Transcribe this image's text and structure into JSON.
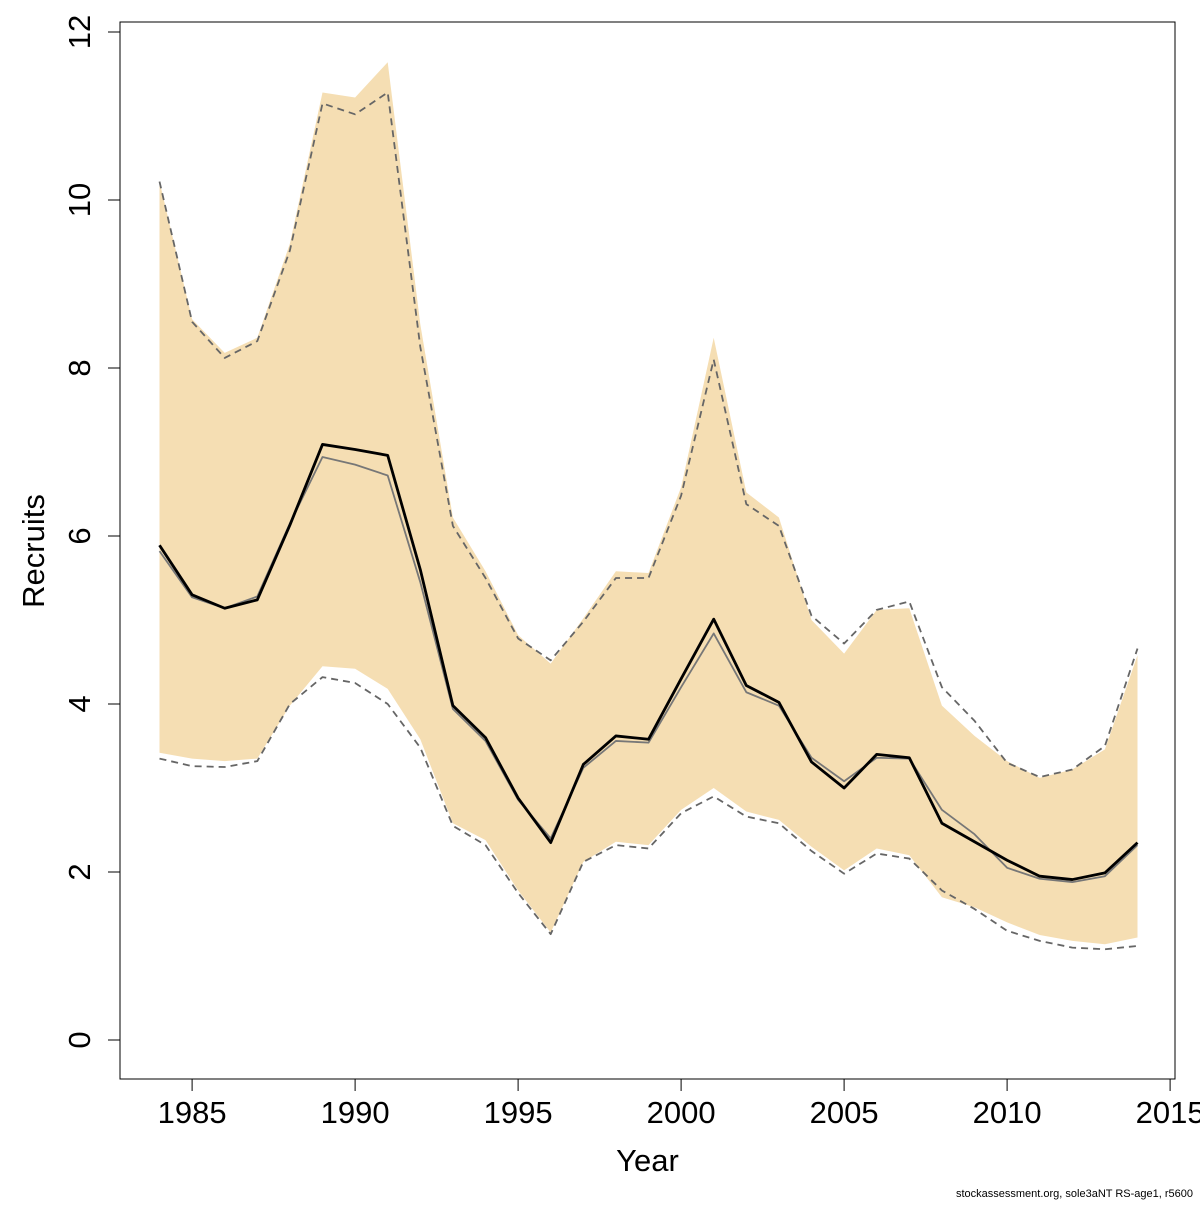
{
  "chart_data": {
    "type": "line",
    "xlabel": "Year",
    "ylabel": "Recruits",
    "xlim": [
      1982.8,
      2015
    ],
    "ylim": [
      -0.47,
      12.1
    ],
    "x_ticks": [
      1985,
      1990,
      1995,
      2000,
      2005,
      2010,
      2015
    ],
    "x_tick_labels": [
      "1985",
      "1990",
      "1995",
      "2000",
      "2005",
      "2010",
      "2015"
    ],
    "y_ticks": [
      0,
      2,
      4,
      6,
      8,
      10,
      12
    ],
    "y_tick_labels": [
      "0",
      "2",
      "4",
      "6",
      "8",
      "10",
      "12"
    ],
    "years": [
      1984,
      1985,
      1986,
      1987,
      1988,
      1989,
      1990,
      1991,
      1992,
      1993,
      1994,
      1995,
      1996,
      1997,
      1998,
      1999,
      2000,
      2001,
      2002,
      2003,
      2004,
      2005,
      2006,
      2007,
      2008,
      2009,
      2010,
      2011,
      2012,
      2013,
      2014
    ],
    "series": [
      {
        "role": "band",
        "color": "#f5deb3",
        "lower": [
          3.42,
          3.35,
          3.32,
          3.35,
          3.98,
          4.45,
          4.42,
          4.18,
          3.58,
          2.58,
          2.38,
          1.78,
          1.28,
          2.12,
          2.36,
          2.32,
          2.74,
          3.0,
          2.72,
          2.62,
          2.3,
          2.02,
          2.28,
          2.2,
          1.7,
          1.58,
          1.4,
          1.25,
          1.18,
          1.14,
          1.22
        ],
        "upper": [
          10.22,
          8.58,
          8.18,
          8.36,
          9.48,
          11.28,
          11.22,
          11.64,
          8.52,
          6.22,
          5.58,
          4.82,
          4.48,
          5.02,
          5.58,
          5.56,
          6.58,
          8.36,
          6.52,
          6.22,
          5.0,
          4.6,
          5.12,
          5.14,
          3.98,
          3.62,
          3.32,
          3.12,
          3.22,
          3.46,
          4.58
        ]
      },
      {
        "role": "upper-dashed",
        "color": "#666666",
        "values": [
          10.22,
          8.55,
          8.12,
          8.32,
          9.4,
          11.15,
          11.02,
          11.28,
          8.25,
          6.12,
          5.5,
          4.78,
          4.52,
          4.98,
          5.5,
          5.5,
          6.48,
          8.1,
          6.38,
          6.12,
          5.05,
          4.72,
          5.12,
          5.22,
          4.2,
          3.8,
          3.3,
          3.13,
          3.22,
          3.5,
          4.66
        ]
      },
      {
        "role": "lower-dashed",
        "color": "#666666",
        "values": [
          3.35,
          3.26,
          3.25,
          3.32,
          4.0,
          4.32,
          4.25,
          4.0,
          3.48,
          2.55,
          2.32,
          1.75,
          1.26,
          2.12,
          2.32,
          2.28,
          2.7,
          2.9,
          2.66,
          2.58,
          2.25,
          1.98,
          2.22,
          2.16,
          1.78,
          1.56,
          1.3,
          1.18,
          1.1,
          1.08,
          1.12
        ]
      },
      {
        "role": "secondary-estimate",
        "color": "#777777",
        "values": [
          5.82,
          5.27,
          5.14,
          5.28,
          6.15,
          6.94,
          6.85,
          6.72,
          5.45,
          3.94,
          3.56,
          2.86,
          2.4,
          3.24,
          3.56,
          3.54,
          4.2,
          4.84,
          4.14,
          3.98,
          3.36,
          3.08,
          3.36,
          3.35,
          2.74,
          2.45,
          2.05,
          1.92,
          1.88,
          1.95,
          2.32
        ]
      },
      {
        "role": "primary-estimate",
        "color": "#000000",
        "values": [
          5.89,
          5.3,
          5.14,
          5.24,
          6.13,
          7.09,
          7.03,
          6.96,
          5.6,
          3.98,
          3.6,
          2.88,
          2.35,
          3.28,
          3.62,
          3.58,
          4.3,
          5.01,
          4.22,
          4.02,
          3.31,
          3.0,
          3.4,
          3.36,
          2.58,
          2.36,
          2.14,
          1.95,
          1.91,
          1.99,
          2.35
        ]
      }
    ]
  },
  "footer": {
    "note": "stockassessment.org, sole3aNT  RS-age1, r5600"
  }
}
